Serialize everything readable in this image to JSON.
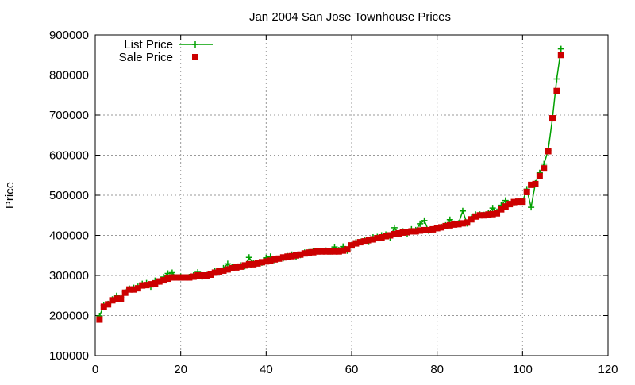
{
  "chart_data": {
    "type": "line",
    "title": "Jan 2004 San Jose Townhouse Prices",
    "xlabel": "",
    "ylabel": "Price",
    "xlim": [
      0,
      120
    ],
    "ylim": [
      100000,
      900000
    ],
    "x_ticks": [
      0,
      20,
      40,
      60,
      80,
      100,
      120
    ],
    "y_ticks": [
      100000,
      200000,
      300000,
      400000,
      500000,
      600000,
      700000,
      800000,
      900000
    ],
    "grid": true,
    "legend_position": "top-left",
    "series": [
      {
        "name": "List Price",
        "style": "line-with-plus-markers",
        "color": "#00a000",
        "values": [
          199000,
          225000,
          229000,
          240000,
          249000,
          245000,
          259000,
          267000,
          269000,
          272000,
          279000,
          281000,
          272000,
          287000,
          285000,
          296000,
          305000,
          307000,
          295000,
          297000,
          295000,
          296000,
          300000,
          308000,
          297000,
          301000,
          302000,
          310000,
          312000,
          318000,
          329000,
          321000,
          321000,
          325000,
          323000,
          345000,
          330000,
          331000,
          332000,
          344000,
          347000,
          338000,
          342000,
          343000,
          348000,
          352000,
          347000,
          351000,
          357000,
          358000,
          360000,
          360000,
          361000,
          362000,
          360000,
          371000,
          363000,
          372000,
          362000,
          375000,
          383000,
          385000,
          388000,
          384000,
          395000,
          396000,
          400000,
          402000,
          395000,
          419000,
          405000,
          410000,
          403000,
          415000,
          413000,
          429000,
          437000,
          412000,
          415000,
          418000,
          421000,
          425000,
          439000,
          429000,
          430000,
          461000,
          430000,
          446000,
          452000,
          452000,
          451000,
          456000,
          468000,
          459000,
          475000,
          487000,
          478000,
          482000,
          485000,
          484000,
          515000,
          470000,
          530000,
          556000,
          578000,
          612000,
          692000,
          790000,
          865000
        ]
      },
      {
        "name": "Sale Price",
        "style": "square-markers",
        "color": "#cc0000",
        "values": [
          190000,
          222000,
          228000,
          238000,
          242000,
          242000,
          257000,
          265000,
          265000,
          268000,
          275000,
          276000,
          278000,
          280000,
          285000,
          288000,
          292000,
          295000,
          295000,
          295000,
          295000,
          295000,
          297000,
          300000,
          300000,
          300000,
          302000,
          307000,
          310000,
          312000,
          315000,
          318000,
          320000,
          322000,
          325000,
          328000,
          328000,
          330000,
          333000,
          335000,
          337000,
          340000,
          342000,
          345000,
          347000,
          348000,
          350000,
          352000,
          355000,
          357000,
          358000,
          360000,
          360000,
          360000,
          360000,
          360000,
          360000,
          362000,
          365000,
          375000,
          380000,
          383000,
          385000,
          388000,
          390000,
          393000,
          395000,
          398000,
          400000,
          403000,
          405000,
          407000,
          408000,
          410000,
          410000,
          412000,
          413000,
          413000,
          415000,
          418000,
          420000,
          423000,
          425000,
          427000,
          428000,
          430000,
          432000,
          440000,
          447000,
          450000,
          450000,
          452000,
          453000,
          455000,
          465000,
          472000,
          478000,
          483000,
          484000,
          484000,
          508000,
          526000,
          528000,
          548000,
          567000,
          610000,
          692000,
          760000,
          850000
        ]
      }
    ]
  }
}
